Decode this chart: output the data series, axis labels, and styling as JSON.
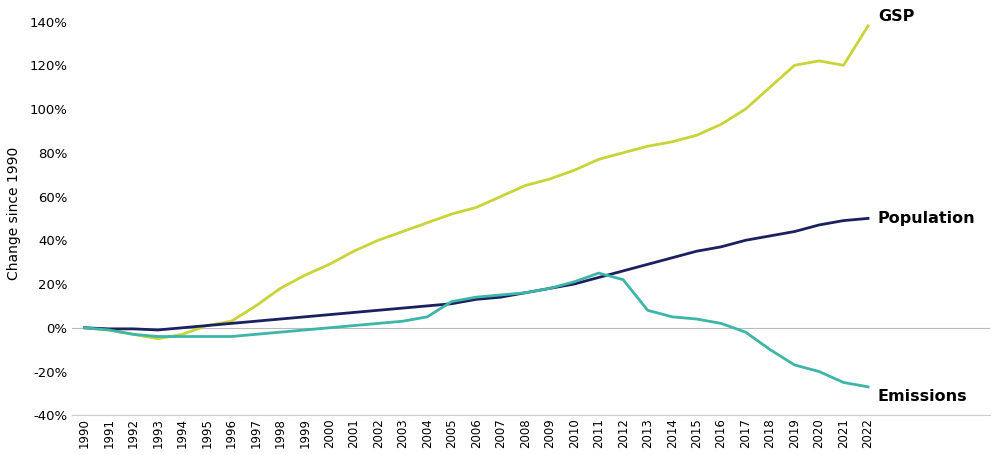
{
  "years": [
    1990,
    1991,
    1992,
    1993,
    1994,
    1995,
    1996,
    1997,
    1998,
    1999,
    2000,
    2001,
    2002,
    2003,
    2004,
    2005,
    2006,
    2007,
    2008,
    2009,
    2010,
    2011,
    2012,
    2013,
    2014,
    2015,
    2016,
    2017,
    2018,
    2019,
    2020,
    2021,
    2022
  ],
  "gsp": [
    0,
    -1,
    -3,
    -5,
    -3,
    1,
    3,
    10,
    18,
    24,
    29,
    35,
    40,
    44,
    48,
    52,
    55,
    60,
    65,
    68,
    72,
    77,
    80,
    83,
    85,
    88,
    93,
    100,
    110,
    120,
    122,
    120,
    138
  ],
  "population": [
    0,
    -0.5,
    -0.5,
    -1,
    0,
    1,
    2,
    3,
    4,
    5,
    6,
    7,
    8,
    9,
    10,
    11,
    13,
    14,
    16,
    18,
    20,
    23,
    26,
    29,
    32,
    35,
    37,
    40,
    42,
    44,
    47,
    49,
    50
  ],
  "emissions": [
    0,
    -1,
    -3,
    -4,
    -4,
    -4,
    -4,
    -3,
    -2,
    -1,
    0,
    1,
    2,
    3,
    5,
    12,
    14,
    15,
    16,
    18,
    21,
    25,
    22,
    8,
    5,
    4,
    2,
    -2,
    -10,
    -17,
    -20,
    -25,
    -27
  ],
  "gsp_color": "#c8d437",
  "population_color": "#1a2060",
  "emissions_color": "#3db5a7",
  "ylabel": "Change since 1990",
  "ylim": [
    -40,
    145
  ],
  "yticks": [
    -40,
    -20,
    0,
    20,
    40,
    60,
    80,
    100,
    120,
    140
  ],
  "background_color": "#ffffff",
  "line_width": 2.0,
  "label_gsp": "GSP",
  "label_population": "Population",
  "label_emissions": "Emissions",
  "label_fontsize": 11.5
}
